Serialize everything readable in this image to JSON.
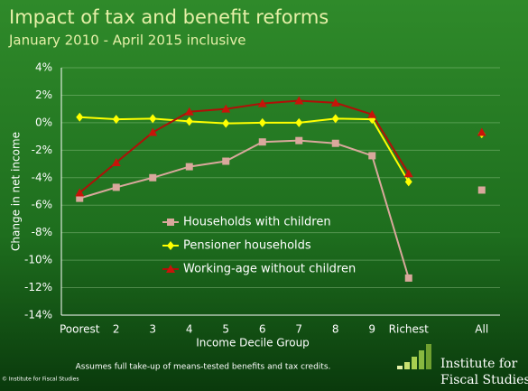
{
  "chart_data": {
    "type": "line",
    "title": "Impact of tax and benefit reforms",
    "subtitle": "January 2010 - April 2015 inclusive",
    "y_label": "Change in net income",
    "x_label": "Income Decile Group",
    "note": "Assumes full take-up of means-tested benefits and tax credits.",
    "copyright": "© Institute for Fiscal Studies",
    "logo_text": [
      "Institute for",
      "Fiscal Studies"
    ],
    "categories": [
      "Poorest",
      "2",
      "3",
      "4",
      "5",
      "6",
      "7",
      "8",
      "9",
      "Richest",
      null,
      "All"
    ],
    "series": [
      {
        "name": "Households with children",
        "color": "#d9a89c",
        "line_color": "#d9a89c",
        "marker": "square",
        "values": [
          -5.5,
          -4.7,
          -4.0,
          -3.2,
          -2.8,
          -1.4,
          -1.3,
          -1.5,
          -2.4,
          -11.3,
          null,
          -4.9
        ]
      },
      {
        "name": "Pensioner households",
        "color": "#ffff00",
        "line_color": "#ffff00",
        "marker": "diamond",
        "values": [
          0.4,
          0.25,
          0.3,
          0.1,
          -0.05,
          0,
          0,
          0.3,
          0.25,
          -4.3,
          null,
          -0.8
        ]
      },
      {
        "name": "Working-age without children",
        "color": "#c8140a",
        "line_color": "#b01008",
        "marker": "triangle",
        "values": [
          -5.1,
          -2.9,
          -0.7,
          0.8,
          1.0,
          1.4,
          1.6,
          1.45,
          0.6,
          -3.7,
          null,
          -0.7
        ]
      }
    ],
    "ylim": [
      -14,
      4
    ],
    "yticks": [
      {
        "value": -14,
        "label": "-14%"
      },
      {
        "value": -12,
        "label": "-12%"
      },
      {
        "value": -10,
        "label": "-10%"
      },
      {
        "value": -8,
        "label": "-8%"
      },
      {
        "value": -6,
        "label": "-6%"
      },
      {
        "value": -4,
        "label": "-4%"
      },
      {
        "value": -2,
        "label": "-2%"
      },
      {
        "value": 0,
        "label": "0%"
      },
      {
        "value": 2,
        "label": "2%"
      },
      {
        "value": 4,
        "label": "4%"
      }
    ],
    "grid": true
  }
}
